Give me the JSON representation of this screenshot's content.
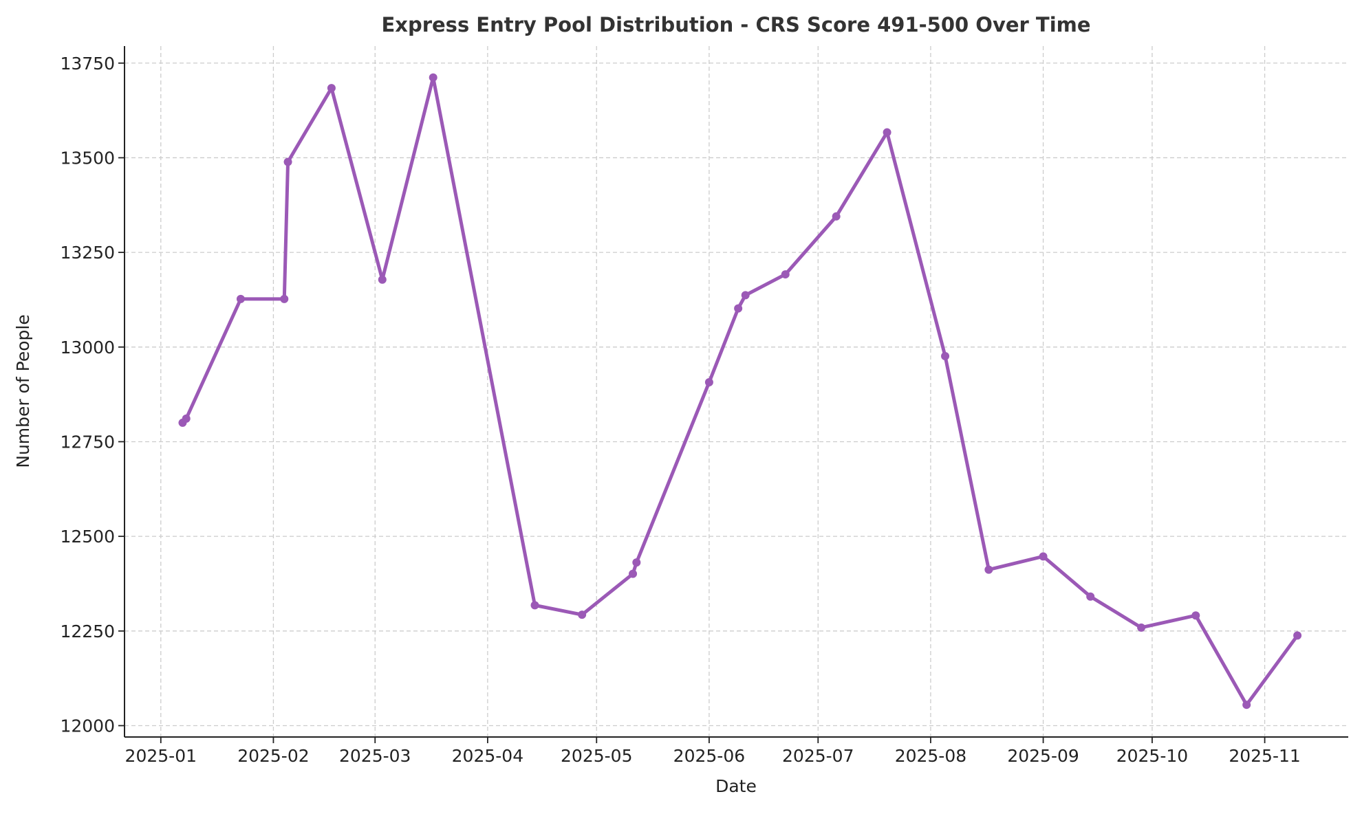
{
  "chart_data": {
    "type": "line",
    "title": "Express Entry Pool Distribution - CRS Score 491-500 Over Time",
    "xlabel": "Date",
    "ylabel": "Number of People",
    "ylim": [
      11970,
      13795
    ],
    "xlim": [
      "2024-12-22",
      "2025-11-24"
    ],
    "grid": true,
    "line_color": "#9b59b6",
    "x_tick_labels": [
      "2025-01",
      "2025-02",
      "2025-03",
      "2025-04",
      "2025-05",
      "2025-06",
      "2025-07",
      "2025-08",
      "2025-09",
      "2025-10",
      "2025-11"
    ],
    "y_tick_labels": [
      12000,
      12250,
      12500,
      12750,
      13000,
      13250,
      13500,
      13750
    ],
    "series": [
      {
        "x": [
          "2025-01-07",
          "2025-01-08",
          "2025-01-23",
          "2025-02-04",
          "2025-02-05",
          "2025-02-17",
          "2025-03-03",
          "2025-03-17",
          "2025-04-14",
          "2025-04-27",
          "2025-05-11",
          "2025-05-12",
          "2025-06-01",
          "2025-06-09",
          "2025-06-11",
          "2025-06-22",
          "2025-07-06",
          "2025-07-20",
          "2025-08-05",
          "2025-08-17",
          "2025-09-01",
          "2025-09-14",
          "2025-09-28",
          "2025-10-13",
          "2025-10-27",
          "2025-11-10"
        ],
        "values": [
          12800,
          12811,
          13127,
          13127,
          13489,
          13684,
          13178,
          13712,
          12318,
          12293,
          12401,
          12431,
          12907,
          13102,
          13137,
          13192,
          13345,
          13567,
          12976,
          12412,
          12447,
          12341,
          12259,
          12291,
          12055,
          12238
        ]
      }
    ]
  }
}
